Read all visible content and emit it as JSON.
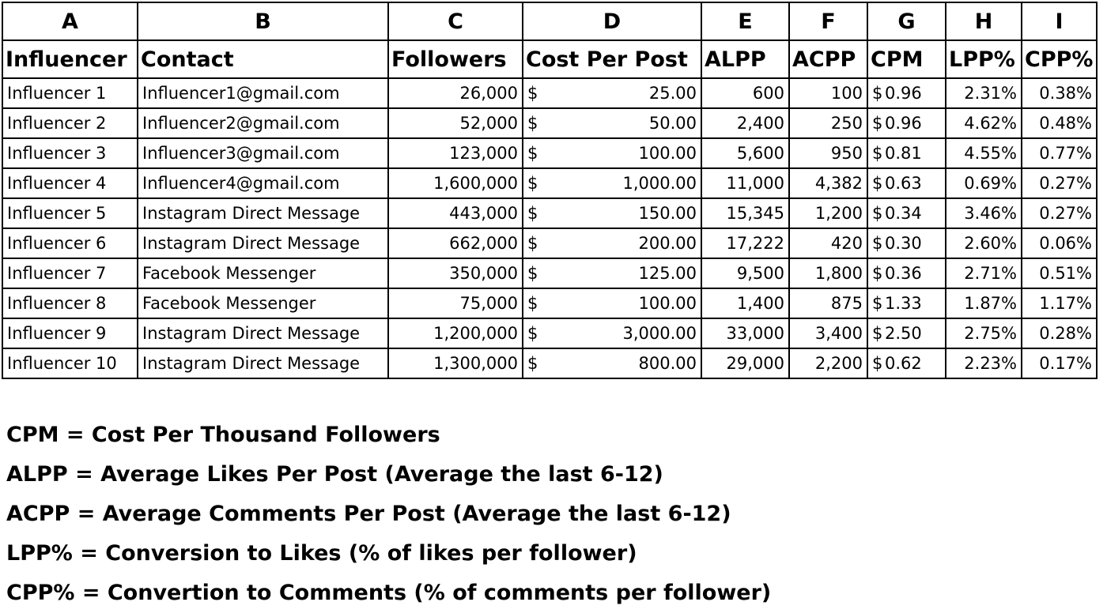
{
  "column_letters": [
    "A",
    "B",
    "C",
    "D",
    "E",
    "F",
    "G",
    "H",
    "I"
  ],
  "headers": [
    "Influencer",
    "Contact",
    "Followers",
    "Cost Per Post",
    "ALPP",
    "ACPP",
    "CPM",
    "LPP%",
    "CPP%"
  ],
  "currency_symbol": "$",
  "rows": [
    [
      "Influencer 1",
      "Influencer1@gmail.com",
      "26,000",
      "25.00",
      "600",
      "100",
      "0.96",
      "2.31%",
      "0.38%"
    ],
    [
      "Influencer 2",
      "Influencer2@gmail.com",
      "52,000",
      "50.00",
      "2,400",
      "250",
      "0.96",
      "4.62%",
      "0.48%"
    ],
    [
      "Influencer 3",
      "Influencer3@gmail.com",
      "123,000",
      "100.00",
      "5,600",
      "950",
      "0.81",
      "4.55%",
      "0.77%"
    ],
    [
      "Influencer 4",
      "Influencer4@gmail.com",
      "1,600,000",
      "1,000.00",
      "11,000",
      "4,382",
      "0.63",
      "0.69%",
      "0.27%"
    ],
    [
      "Influencer 5",
      "Instagram Direct Message",
      "443,000",
      "150.00",
      "15,345",
      "1,200",
      "0.34",
      "3.46%",
      "0.27%"
    ],
    [
      "Influencer 6",
      "Instagram Direct Message",
      "662,000",
      "200.00",
      "17,222",
      "420",
      "0.30",
      "2.60%",
      "0.06%"
    ],
    [
      "Influencer 7",
      "Facebook Messenger",
      "350,000",
      "125.00",
      "9,500",
      "1,800",
      "0.36",
      "2.71%",
      "0.51%"
    ],
    [
      "Influencer 8",
      "Facebook Messenger",
      "75,000",
      "100.00",
      "1,400",
      "875",
      "1.33",
      "1.87%",
      "1.17%"
    ],
    [
      "Influencer 9",
      "Instagram Direct Message",
      "1,200,000",
      "3,000.00",
      "33,000",
      "3,400",
      "2.50",
      "2.75%",
      "0.28%"
    ],
    [
      "Influencer 10",
      "Instagram Direct Message",
      "1,300,000",
      "800.00",
      "29,000",
      "2,200",
      "0.62",
      "2.23%",
      "0.17%"
    ]
  ],
  "legend": [
    "CPM = Cost Per Thousand Followers",
    "ALPP = Average Likes Per Post (Average the last 6-12)",
    "ACPP = Average Comments Per Post (Average the last 6-12)",
    "LPP% = Conversion to Likes (% of likes per follower)",
    "CPP% = Convertion to Comments (% of comments per follower)"
  ]
}
